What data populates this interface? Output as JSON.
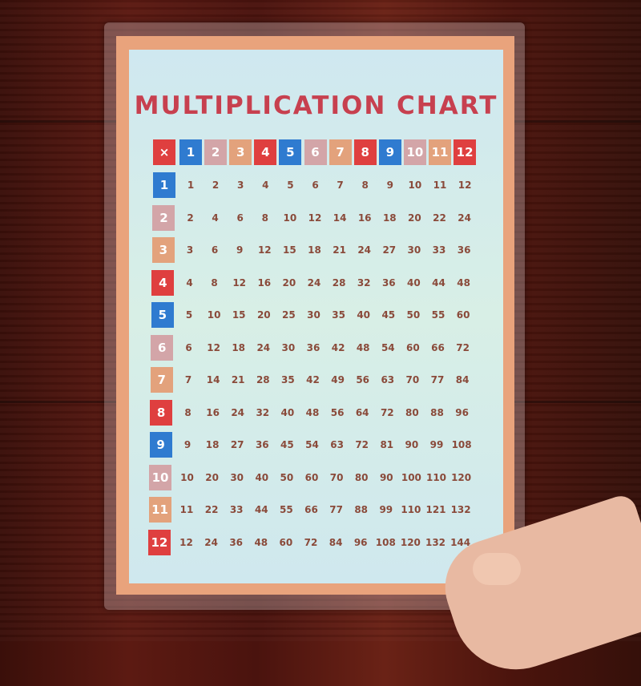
{
  "title": "MULTIPLICATION CHART",
  "corner_symbol": "×",
  "colors": {
    "blue": "#2f7bd0",
    "pink": "#d3a5a8",
    "orange": "#e3a27c",
    "red": "#df3f3f",
    "title": "#c7404f",
    "number": "#8a4a3a"
  },
  "header": [
    "1",
    "2",
    "3",
    "4",
    "5",
    "6",
    "7",
    "8",
    "9",
    "10",
    "11",
    "12"
  ],
  "rows": [
    [
      "1",
      "2",
      "3",
      "4",
      "5",
      "6",
      "7",
      "8",
      "9",
      "10",
      "11",
      "12"
    ],
    [
      "2",
      "4",
      "6",
      "8",
      "10",
      "12",
      "14",
      "16",
      "18",
      "20",
      "22",
      "24"
    ],
    [
      "3",
      "6",
      "9",
      "12",
      "15",
      "18",
      "21",
      "24",
      "27",
      "30",
      "33",
      "36"
    ],
    [
      "4",
      "8",
      "12",
      "16",
      "20",
      "24",
      "28",
      "32",
      "36",
      "40",
      "44",
      "48"
    ],
    [
      "5",
      "10",
      "15",
      "20",
      "25",
      "30",
      "35",
      "40",
      "45",
      "50",
      "55",
      "60"
    ],
    [
      "6",
      "12",
      "18",
      "24",
      "30",
      "36",
      "42",
      "48",
      "54",
      "60",
      "66",
      "72"
    ],
    [
      "7",
      "14",
      "21",
      "28",
      "35",
      "42",
      "49",
      "56",
      "63",
      "70",
      "77",
      "84"
    ],
    [
      "8",
      "16",
      "24",
      "32",
      "40",
      "48",
      "56",
      "64",
      "72",
      "80",
      "88",
      "96"
    ],
    [
      "9",
      "18",
      "27",
      "36",
      "45",
      "54",
      "63",
      "72",
      "81",
      "90",
      "99",
      "108"
    ],
    [
      "10",
      "20",
      "30",
      "40",
      "50",
      "60",
      "70",
      "80",
      "90",
      "100",
      "110",
      "120"
    ],
    [
      "11",
      "22",
      "33",
      "44",
      "55",
      "66",
      "77",
      "88",
      "99",
      "110",
      "121",
      "132"
    ],
    [
      "12",
      "24",
      "36",
      "48",
      "60",
      "72",
      "84",
      "96",
      "108",
      "120",
      "132",
      "144"
    ]
  ]
}
